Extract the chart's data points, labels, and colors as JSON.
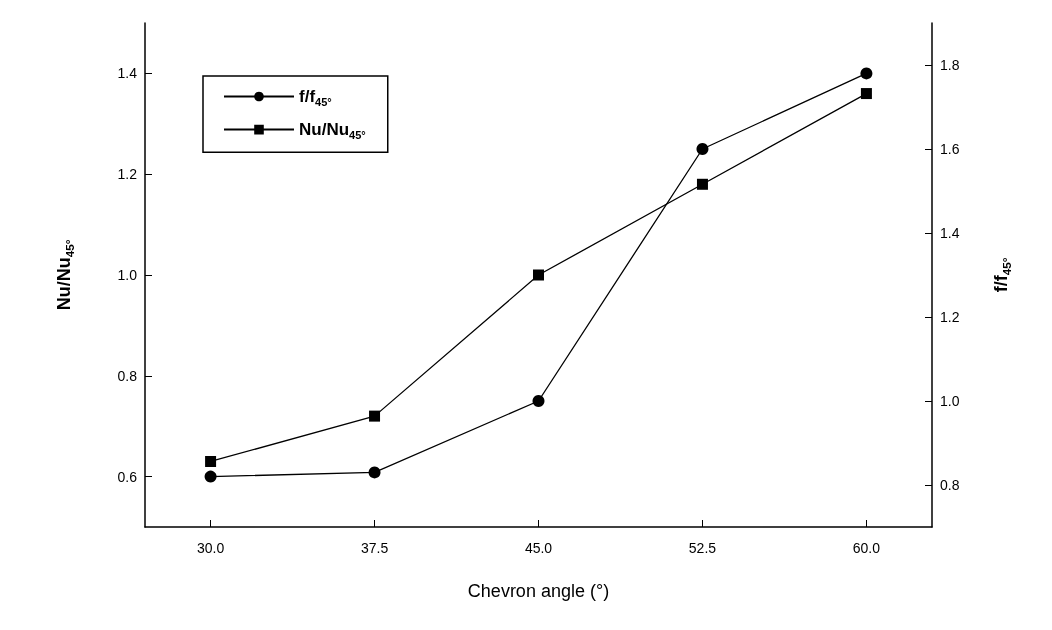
{
  "chart_data": {
    "type": "line",
    "xlabel": "Chevron angle (°)",
    "ylabel": "Nu/Nu$_{45°}$",
    "y2label": "f/f$_{45°}$",
    "x": [
      30,
      37.5,
      45,
      52.5,
      60
    ],
    "series": [
      {
        "name": "f/f$_{45°}$",
        "color": "#000000",
        "axis": "y2",
        "marker": "circle",
        "values": [
          0.82,
          0.83,
          1.0,
          1.6,
          1.78
        ]
      },
      {
        "name": "Nu/Nu$_{45°}$",
        "color": "#000000",
        "marker": "square",
        "values": [
          0.63,
          0.72,
          1.0,
          1.18,
          1.36
        ]
      }
    ],
    "xlim": [
      27,
      63
    ],
    "xticks": [
      {
        "value": 30,
        "label": "30.0"
      },
      {
        "value": 37.5,
        "label": "37.5"
      },
      {
        "value": 45,
        "label": "45.0"
      },
      {
        "value": 52.5,
        "label": "52.5"
      },
      {
        "value": 60,
        "label": "60.0"
      }
    ],
    "ylim": [
      0.5,
      1.5
    ],
    "yticks": [
      {
        "value": 0.6,
        "label": "0.6"
      },
      {
        "value": 0.8,
        "label": "0.8"
      },
      {
        "value": 1.0,
        "label": "1.0"
      },
      {
        "value": 1.2,
        "label": "1.2"
      },
      {
        "value": 1.4,
        "label": "1.4"
      }
    ],
    "y2lim": [
      0.7,
      1.9
    ],
    "y2ticks": [
      {
        "value": 0.8,
        "label": "0.8"
      },
      {
        "value": 1.0,
        "label": "1.0"
      },
      {
        "value": 1.2,
        "label": "1.2"
      },
      {
        "value": 1.4,
        "label": "1.4"
      },
      {
        "value": 1.6,
        "label": "1.6"
      },
      {
        "value": 1.8,
        "label": "1.8"
      }
    ],
    "grid": false,
    "legend": "top left",
    "line_style": "solid"
  }
}
